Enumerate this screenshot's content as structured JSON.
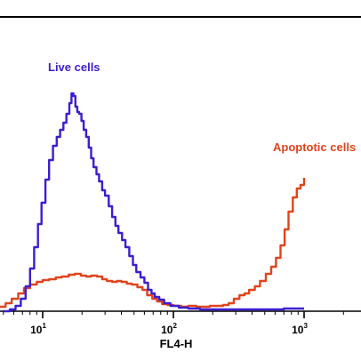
{
  "chart_data": {
    "type": "line",
    "xlabel": "FL4-H",
    "ylabel": "",
    "x_scale": "log",
    "xlim": [
      2.3,
      1000
    ],
    "ylim": [
      0,
      270
    ],
    "x_tick_labels": [
      {
        "base": "10",
        "exp": "1",
        "value": 10
      },
      {
        "base": "10",
        "exp": "2",
        "value": 100
      },
      {
        "base": "10",
        "exp": "3",
        "value": 1000
      }
    ],
    "annotations": [
      {
        "text": "Live cells",
        "series": "live"
      },
      {
        "text": "Apoptotic cells",
        "series": "apoptotic"
      }
    ],
    "series": [
      {
        "name": "Live cells",
        "key": "live",
        "color": "#3a1fd0",
        "points": [
          [
            5.0,
            0
          ],
          [
            5.6,
            2
          ],
          [
            6.2,
            6
          ],
          [
            6.8,
            14
          ],
          [
            7.4,
            28
          ],
          [
            8.0,
            48
          ],
          [
            8.6,
            72
          ],
          [
            9.2,
            98
          ],
          [
            9.8,
            122
          ],
          [
            10.5,
            148
          ],
          [
            11.2,
            170
          ],
          [
            12.0,
            186
          ],
          [
            12.8,
            196
          ],
          [
            13.6,
            204
          ],
          [
            14.4,
            212
          ],
          [
            15.2,
            222
          ],
          [
            16.0,
            234
          ],
          [
            16.6,
            245
          ],
          [
            17.2,
            242
          ],
          [
            17.8,
            230
          ],
          [
            18.4,
            224
          ],
          [
            19.0,
            222
          ],
          [
            19.8,
            214
          ],
          [
            20.6,
            204
          ],
          [
            21.5,
            196
          ],
          [
            22.5,
            184
          ],
          [
            23.5,
            172
          ],
          [
            24.5,
            162
          ],
          [
            25.8,
            154
          ],
          [
            27.0,
            146
          ],
          [
            28.5,
            136
          ],
          [
            30.0,
            130
          ],
          [
            32.0,
            118
          ],
          [
            34.0,
            106
          ],
          [
            36.0,
            96
          ],
          [
            38.0,
            88
          ],
          [
            40.5,
            80
          ],
          [
            43.0,
            72
          ],
          [
            46.0,
            62
          ],
          [
            49.0,
            52
          ],
          [
            52.0,
            44
          ],
          [
            56.0,
            38
          ],
          [
            60.0,
            32
          ],
          [
            64.0,
            24
          ],
          [
            68.0,
            20
          ],
          [
            72.0,
            16
          ],
          [
            78.0,
            13
          ],
          [
            85.0,
            9
          ],
          [
            95.0,
            6
          ],
          [
            110.0,
            4
          ],
          [
            130.0,
            3
          ],
          [
            160.0,
            2
          ],
          [
            200.0,
            2
          ],
          [
            300.0,
            2
          ],
          [
            500.0,
            2
          ],
          [
            700.0,
            3
          ],
          [
            900.0,
            3
          ],
          [
            1000.0,
            3
          ]
        ]
      },
      {
        "name": "Apoptotic cells",
        "key": "apoptotic",
        "color": "#e0441c",
        "points": [
          [
            2.3,
            0
          ],
          [
            2.8,
            1
          ],
          [
            3.4,
            3
          ],
          [
            4.0,
            4
          ],
          [
            4.6,
            5
          ],
          [
            5.2,
            9
          ],
          [
            5.8,
            14
          ],
          [
            6.5,
            20
          ],
          [
            7.2,
            26
          ],
          [
            8.0,
            30
          ],
          [
            9.0,
            33
          ],
          [
            10.0,
            35
          ],
          [
            11.2,
            36
          ],
          [
            12.6,
            38
          ],
          [
            14.0,
            39
          ],
          [
            15.8,
            41
          ],
          [
            17.6,
            42
          ],
          [
            19.6,
            40
          ],
          [
            21.5,
            39
          ],
          [
            23.5,
            40
          ],
          [
            26.0,
            39
          ],
          [
            28.5,
            36
          ],
          [
            31.0,
            34
          ],
          [
            34.0,
            33
          ],
          [
            37.0,
            34
          ],
          [
            40.0,
            33
          ],
          [
            44.0,
            31
          ],
          [
            48.0,
            30
          ],
          [
            53.0,
            27
          ],
          [
            58.0,
            24
          ],
          [
            63.0,
            18
          ],
          [
            69.0,
            14
          ],
          [
            75.0,
            11
          ],
          [
            82.0,
            8
          ],
          [
            90.0,
            7
          ],
          [
            100.0,
            6
          ],
          [
            115.0,
            5
          ],
          [
            130.0,
            6
          ],
          [
            150.0,
            5
          ],
          [
            170.0,
            5
          ],
          [
            190.0,
            6
          ],
          [
            215.0,
            6
          ],
          [
            240.0,
            7
          ],
          [
            265.0,
            9
          ],
          [
            290.0,
            14
          ],
          [
            320.0,
            18
          ],
          [
            350.0,
            20
          ],
          [
            380.0,
            24
          ],
          [
            420.0,
            28
          ],
          [
            460.0,
            34
          ],
          [
            510.0,
            42
          ],
          [
            560.0,
            50
          ],
          [
            610.0,
            60
          ],
          [
            660.0,
            74
          ],
          [
            710.0,
            92
          ],
          [
            760.0,
            112
          ],
          [
            820.0,
            128
          ],
          [
            880.0,
            138
          ],
          [
            940.0,
            142
          ],
          [
            1000.0,
            150
          ]
        ]
      }
    ],
    "grid": false
  }
}
